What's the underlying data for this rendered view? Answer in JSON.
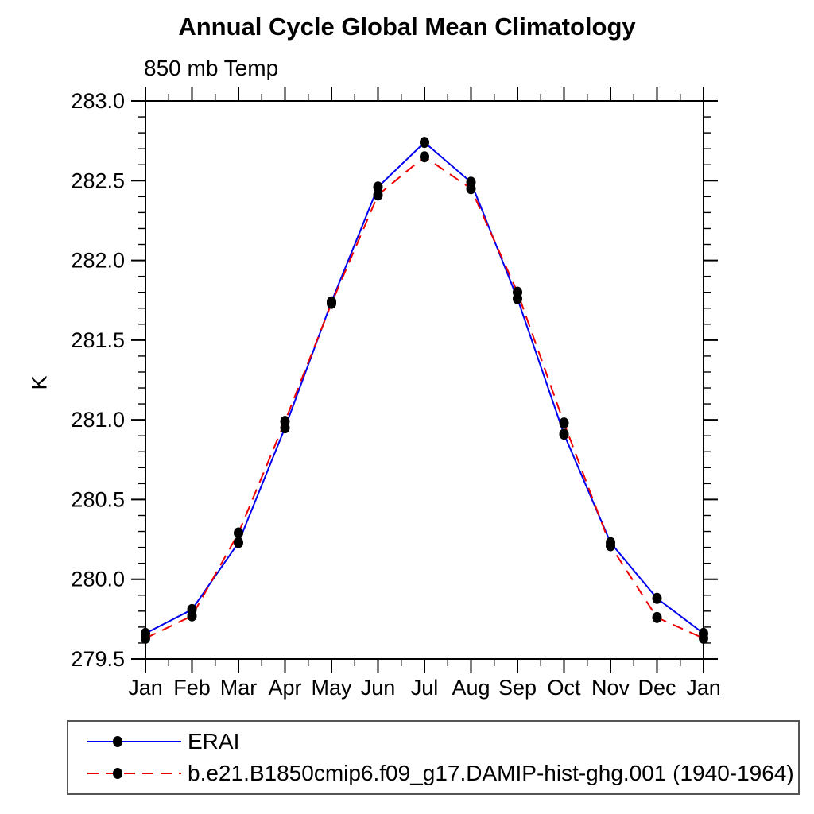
{
  "title": "Annual Cycle Global Mean Climatology",
  "subtitle": "850 mb Temp",
  "ylabel": "K",
  "chart_data": {
    "type": "line",
    "title": "Annual Cycle Global Mean Climatology",
    "subtitle": "850 mb Temp",
    "ylabel": "K",
    "x_categories": [
      "Jan",
      "Feb",
      "Mar",
      "Apr",
      "May",
      "Jun",
      "Jul",
      "Aug",
      "Sep",
      "Oct",
      "Nov",
      "Dec",
      "Jan"
    ],
    "ylim": [
      279.5,
      283.0
    ],
    "y_major_step": 0.5,
    "y_minor_step": 0.1,
    "y_tick_labels": [
      "279.5",
      "280.0",
      "280.5",
      "281.0",
      "281.5",
      "282.0",
      "282.5",
      "283.0"
    ],
    "grid": false,
    "legend_position": "bottom-left-box",
    "axis_color": "#000000",
    "marker": "black-dot",
    "marker_color": "#000000",
    "series": [
      {
        "name": "ERAI",
        "color": "#0000ee",
        "style": "solid",
        "values": [
          279.66,
          279.81,
          280.23,
          280.95,
          281.74,
          282.46,
          282.74,
          282.49,
          281.76,
          280.91,
          280.23,
          279.88,
          279.66
        ]
      },
      {
        "name": "b.e21.B1850cmip6.f09_g17.DAMIP-hist-ghg.001 (1940-1964)",
        "color": "#ee0000",
        "style": "dashed",
        "values": [
          279.63,
          279.77,
          280.29,
          280.99,
          281.73,
          282.41,
          282.65,
          282.45,
          281.8,
          280.98,
          280.21,
          279.76,
          279.63
        ]
      }
    ]
  }
}
